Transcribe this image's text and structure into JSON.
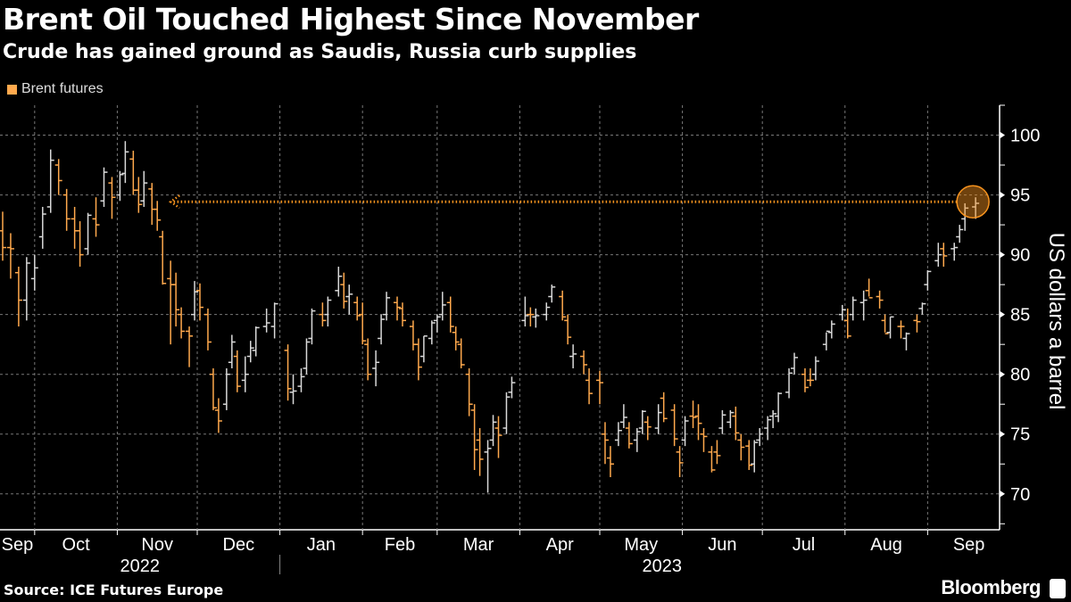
{
  "header": {
    "title": "Brent Oil Touched Highest Since November",
    "subtitle": "Crude has gained ground as Saudis, Russia curb supplies"
  },
  "footer": {
    "source": "Source: ICE Futures Europe",
    "brand": "Bloomberg"
  },
  "colors": {
    "background": "#000000",
    "down": "#ffa94d",
    "up": "#d9d9d9",
    "annotation": "#f7931e",
    "grid": "#777777"
  },
  "chart_data": {
    "type": "ohlc",
    "title": "Brent Oil Touched Highest Since November",
    "subtitle": "Crude has gained ground as Saudis, Russia curb supplies",
    "legend": [
      {
        "name": "Brent futures",
        "color": "#ffa94d"
      }
    ],
    "legend_placement": "top-left",
    "ylabel": "US dollars a barrel",
    "y_axis_side": "right",
    "ylim": [
      67,
      102.5
    ],
    "yticks": [
      70,
      75,
      80,
      85,
      90,
      95,
      100
    ],
    "xlim": [
      "2022-09-18",
      "2023-09-28"
    ],
    "xticks": [
      {
        "label": "Sep",
        "date": "2022-09-01"
      },
      {
        "label": "Oct",
        "date": "2022-10-01"
      },
      {
        "label": "Nov",
        "date": "2022-11-01"
      },
      {
        "label": "Dec",
        "date": "2022-12-01"
      },
      {
        "label": "Jan",
        "date": "2023-01-01"
      },
      {
        "label": "Feb",
        "date": "2023-02-01"
      },
      {
        "label": "Mar",
        "date": "2023-03-01"
      },
      {
        "label": "Apr",
        "date": "2023-04-01"
      },
      {
        "label": "May",
        "date": "2023-05-01"
      },
      {
        "label": "Jun",
        "date": "2023-06-01"
      },
      {
        "label": "Jul",
        "date": "2023-07-01"
      },
      {
        "label": "Aug",
        "date": "2023-08-01"
      },
      {
        "label": "Sep",
        "date": "2023-09-01"
      }
    ],
    "years": [
      {
        "label": "2022"
      },
      {
        "label": "2023"
      }
    ],
    "grid": true,
    "annotation": {
      "type": "dotted-arrow",
      "value": 94.43,
      "from_date": "2023-09-18",
      "to_date": "2022-11-21",
      "highlight": "circle"
    },
    "columns": [
      "date",
      "open",
      "high",
      "low",
      "close"
    ],
    "bars": [
      [
        "2022-09-19",
        92.0,
        93.6,
        89.5,
        90.6
      ],
      [
        "2022-09-22",
        90.6,
        91.8,
        88.0,
        90.5
      ],
      [
        "2022-09-25",
        88.5,
        89.0,
        84.0,
        86.2
      ],
      [
        "2022-09-28",
        86.2,
        89.8,
        84.5,
        89.3
      ],
      [
        "2022-10-01",
        88.0,
        90.0,
        87.0,
        88.9
      ],
      [
        "2022-10-04",
        91.5,
        94.0,
        90.5,
        93.4
      ],
      [
        "2022-10-07",
        94.0,
        98.8,
        93.5,
        97.9
      ],
      [
        "2022-10-10",
        97.5,
        98.0,
        95.0,
        96.2
      ],
      [
        "2022-10-13",
        95.0,
        95.5,
        92.0,
        93.0
      ],
      [
        "2022-10-16",
        93.0,
        94.0,
        90.5,
        92.0
      ],
      [
        "2022-10-18",
        92.0,
        92.8,
        89.0,
        90.0
      ],
      [
        "2022-10-21",
        90.5,
        93.5,
        90.0,
        93.3
      ],
      [
        "2022-10-24",
        93.0,
        94.8,
        91.5,
        92.5
      ],
      [
        "2022-10-27",
        94.5,
        97.3,
        94.0,
        96.9
      ],
      [
        "2022-10-30",
        96.0,
        96.5,
        93.0,
        94.8
      ],
      [
        "2022-11-02",
        95.0,
        97.0,
        94.5,
        96.7
      ],
      [
        "2022-11-04",
        96.8,
        99.5,
        96.0,
        98.6
      ],
      [
        "2022-11-07",
        98.0,
        98.7,
        95.0,
        95.4
      ],
      [
        "2022-11-09",
        95.4,
        96.5,
        93.5,
        94.2
      ],
      [
        "2022-11-11",
        94.5,
        97.0,
        94.0,
        96.0
      ],
      [
        "2022-11-14",
        95.5,
        96.0,
        92.5,
        93.8
      ],
      [
        "2022-11-16",
        93.8,
        94.5,
        92.0,
        92.9
      ],
      [
        "2022-11-18",
        91.5,
        92.0,
        87.5,
        87.6
      ],
      [
        "2022-11-21",
        88.0,
        89.5,
        82.5,
        87.5
      ],
      [
        "2022-11-23",
        87.5,
        88.5,
        84.0,
        85.4
      ],
      [
        "2022-11-25",
        85.0,
        85.6,
        83.0,
        83.6
      ],
      [
        "2022-11-28",
        83.6,
        84.0,
        80.6,
        83.2
      ],
      [
        "2022-11-30",
        85.0,
        87.8,
        84.5,
        86.9
      ],
      [
        "2022-12-02",
        87.0,
        87.6,
        84.5,
        85.6
      ],
      [
        "2022-12-05",
        85.0,
        85.5,
        82.0,
        82.7
      ],
      [
        "2022-12-07",
        80.0,
        80.5,
        77.0,
        77.2
      ],
      [
        "2022-12-09",
        77.0,
        78.0,
        75.1,
        76.1
      ],
      [
        "2022-12-12",
        77.5,
        80.5,
        77.0,
        80.0
      ],
      [
        "2022-12-14",
        81.0,
        83.3,
        80.5,
        82.7
      ],
      [
        "2022-12-16",
        81.5,
        82.0,
        78.5,
        79.0
      ],
      [
        "2022-12-19",
        79.5,
        81.5,
        78.5,
        80.0
      ],
      [
        "2022-12-21",
        81.5,
        82.8,
        81.0,
        82.2
      ],
      [
        "2022-12-23",
        82.0,
        84.0,
        81.5,
        83.9
      ],
      [
        "2022-12-27",
        84.0,
        85.5,
        83.5,
        84.3
      ],
      [
        "2022-12-30",
        84.0,
        86.0,
        83.0,
        85.9
      ],
      [
        "2023-01-04",
        82.0,
        82.5,
        77.8,
        78.8
      ],
      [
        "2023-01-06",
        78.5,
        80.0,
        77.5,
        78.6
      ],
      [
        "2023-01-09",
        79.0,
        80.5,
        78.5,
        79.8
      ],
      [
        "2023-01-11",
        80.5,
        83.0,
        80.0,
        82.7
      ],
      [
        "2023-01-13",
        83.0,
        85.5,
        82.5,
        85.3
      ],
      [
        "2023-01-17",
        85.0,
        86.0,
        84.0,
        84.5
      ],
      [
        "2023-01-19",
        85.0,
        86.5,
        84.0,
        86.2
      ],
      [
        "2023-01-23",
        87.0,
        89.0,
        86.5,
        88.2
      ],
      [
        "2023-01-25",
        87.5,
        88.5,
        85.5,
        86.1
      ],
      [
        "2023-01-27",
        86.5,
        87.5,
        85.0,
        86.7
      ],
      [
        "2023-01-30",
        86.0,
        86.5,
        84.5,
        84.9
      ],
      [
        "2023-02-01",
        85.0,
        86.0,
        82.5,
        82.8
      ],
      [
        "2023-02-03",
        82.5,
        83.0,
        79.5,
        80.0
      ],
      [
        "2023-02-06",
        80.5,
        82.0,
        79.0,
        81.0
      ],
      [
        "2023-02-08",
        83.0,
        85.0,
        82.5,
        84.6
      ],
      [
        "2023-02-10",
        85.0,
        86.9,
        84.5,
        86.4
      ],
      [
        "2023-02-14",
        86.0,
        86.5,
        84.5,
        85.6
      ],
      [
        "2023-02-16",
        85.5,
        86.0,
        84.0,
        84.5
      ],
      [
        "2023-02-20",
        84.0,
        84.5,
        82.0,
        82.5
      ],
      [
        "2023-02-22",
        82.5,
        83.0,
        79.5,
        80.6
      ],
      [
        "2023-02-24",
        81.5,
        83.2,
        81.0,
        83.2
      ],
      [
        "2023-02-27",
        83.0,
        84.5,
        82.5,
        84.3
      ],
      [
        "2023-03-01",
        84.5,
        85.0,
        83.5,
        84.8
      ],
      [
        "2023-03-03",
        85.0,
        86.9,
        84.5,
        85.8
      ],
      [
        "2023-03-06",
        86.0,
        86.5,
        83.5,
        84.0
      ],
      [
        "2023-03-08",
        83.5,
        84.0,
        82.0,
        82.7
      ],
      [
        "2023-03-10",
        82.5,
        83.0,
        80.5,
        80.8
      ],
      [
        "2023-03-13",
        80.0,
        80.5,
        76.5,
        77.5
      ],
      [
        "2023-03-15",
        77.0,
        77.5,
        72.0,
        73.7
      ],
      [
        "2023-03-17",
        74.5,
        75.5,
        71.5,
        72.9
      ],
      [
        "2023-03-20",
        73.5,
        74.5,
        70.1,
        73.8
      ],
      [
        "2023-03-22",
        74.5,
        76.6,
        74.0,
        76.0
      ],
      [
        "2023-03-24",
        75.5,
        76.5,
        73.0,
        74.9
      ],
      [
        "2023-03-27",
        75.5,
        78.5,
        75.0,
        78.1
      ],
      [
        "2023-03-29",
        78.5,
        79.8,
        78.0,
        79.3
      ],
      [
        "2023-04-03",
        84.5,
        86.5,
        84.0,
        84.9
      ],
      [
        "2023-04-05",
        85.0,
        85.6,
        84.0,
        85.0
      ],
      [
        "2023-04-07",
        84.8,
        85.5,
        83.9,
        84.9
      ],
      [
        "2023-04-11",
        85.0,
        86.0,
        84.5,
        85.6
      ],
      [
        "2023-04-13",
        86.5,
        87.5,
        86.0,
        87.3
      ],
      [
        "2023-04-17",
        86.5,
        87.0,
        84.5,
        84.8
      ],
      [
        "2023-04-19",
        84.5,
        85.0,
        82.5,
        83.1
      ],
      [
        "2023-04-21",
        81.5,
        82.5,
        80.5,
        81.7
      ],
      [
        "2023-04-25",
        81.5,
        82.0,
        80.0,
        80.8
      ],
      [
        "2023-04-27",
        79.5,
        80.5,
        77.5,
        78.4
      ],
      [
        "2023-05-01",
        79.5,
        80.3,
        77.5,
        79.3
      ],
      [
        "2023-05-03",
        75.0,
        76.0,
        72.5,
        74.5
      ],
      [
        "2023-05-05",
        73.0,
        74.0,
        71.4,
        72.5
      ],
      [
        "2023-05-08",
        74.5,
        76.0,
        74.0,
        75.3
      ],
      [
        "2023-05-10",
        76.0,
        77.5,
        75.5,
        76.4
      ],
      [
        "2023-05-12",
        75.5,
        76.0,
        73.8,
        74.2
      ],
      [
        "2023-05-15",
        74.5,
        75.5,
        73.5,
        75.2
      ],
      [
        "2023-05-17",
        75.5,
        77.0,
        75.0,
        76.9
      ],
      [
        "2023-05-19",
        76.0,
        76.5,
        74.5,
        75.6
      ],
      [
        "2023-05-23",
        75.5,
        77.5,
        75.0,
        76.8
      ],
      [
        "2023-05-25",
        78.0,
        78.5,
        76.0,
        76.3
      ],
      [
        "2023-05-29",
        77.0,
        77.5,
        74.0,
        74.6
      ],
      [
        "2023-05-31",
        73.5,
        74.0,
        71.4,
        72.6
      ],
      [
        "2023-06-02",
        74.5,
        76.5,
        74.0,
        76.1
      ],
      [
        "2023-06-05",
        76.5,
        77.8,
        75.5,
        76.4
      ],
      [
        "2023-06-07",
        76.5,
        77.5,
        74.5,
        75.9
      ],
      [
        "2023-06-09",
        75.0,
        75.5,
        73.5,
        74.8
      ],
      [
        "2023-06-12",
        73.5,
        74.0,
        71.8,
        72.0
      ],
      [
        "2023-06-14",
        73.5,
        74.5,
        72.5,
        73.2
      ],
      [
        "2023-06-16",
        75.5,
        77.0,
        75.0,
        76.6
      ],
      [
        "2023-06-19",
        76.0,
        77.0,
        75.5,
        76.8
      ],
      [
        "2023-06-21",
        76.5,
        77.3,
        74.5,
        75.1
      ],
      [
        "2023-06-23",
        74.5,
        75.0,
        72.8,
        73.9
      ],
      [
        "2023-06-26",
        74.0,
        74.5,
        72.0,
        72.4
      ],
      [
        "2023-06-28",
        72.5,
        74.5,
        71.8,
        74.3
      ],
      [
        "2023-06-30",
        74.5,
        75.5,
        74.0,
        75.0
      ],
      [
        "2023-07-03",
        75.5,
        76.5,
        74.5,
        76.2
      ],
      [
        "2023-07-05",
        76.5,
        77.0,
        75.5,
        76.7
      ],
      [
        "2023-07-07",
        76.5,
        78.5,
        76.0,
        78.4
      ],
      [
        "2023-07-11",
        78.5,
        80.5,
        78.0,
        80.1
      ],
      [
        "2023-07-13",
        80.5,
        81.8,
        80.0,
        81.4
      ],
      [
        "2023-07-17",
        80.0,
        80.5,
        78.5,
        78.9
      ],
      [
        "2023-07-19",
        79.5,
        80.5,
        79.0,
        79.5
      ],
      [
        "2023-07-21",
        80.0,
        81.5,
        79.5,
        81.1
      ],
      [
        "2023-07-25",
        82.5,
        83.5,
        82.0,
        83.6
      ],
      [
        "2023-07-27",
        83.5,
        84.5,
        83.0,
        84.2
      ],
      [
        "2023-07-31",
        85.0,
        85.8,
        84.5,
        85.4
      ],
      [
        "2023-08-02",
        84.5,
        85.5,
        83.0,
        83.2
      ],
      [
        "2023-08-04",
        85.0,
        86.5,
        84.5,
        86.2
      ],
      [
        "2023-08-08",
        86.0,
        87.0,
        84.5,
        86.2
      ],
      [
        "2023-08-10",
        87.0,
        88.0,
        86.5,
        86.4
      ],
      [
        "2023-08-14",
        86.5,
        87.0,
        85.5,
        86.2
      ],
      [
        "2023-08-16",
        84.5,
        85.0,
        83.5,
        83.4
      ],
      [
        "2023-08-18",
        83.5,
        84.8,
        83.0,
        84.8
      ],
      [
        "2023-08-22",
        84.0,
        84.5,
        83.0,
        84.0
      ],
      [
        "2023-08-24",
        83.0,
        83.5,
        82.0,
        83.4
      ],
      [
        "2023-08-28",
        84.5,
        85.0,
        83.5,
        84.4
      ],
      [
        "2023-08-30",
        85.5,
        86.0,
        85.0,
        85.9
      ],
      [
        "2023-09-01",
        87.5,
        88.7,
        87.0,
        88.6
      ],
      [
        "2023-09-05",
        89.5,
        91.0,
        89.0,
        90.0
      ],
      [
        "2023-09-07",
        90.5,
        91.0,
        89.0,
        89.9
      ],
      [
        "2023-09-11",
        90.5,
        91.0,
        89.5,
        90.6
      ],
      [
        "2023-09-13",
        91.5,
        92.5,
        91.0,
        92.1
      ],
      [
        "2023-09-15",
        93.0,
        94.3,
        92.0,
        93.9
      ],
      [
        "2023-09-19",
        94.0,
        94.8,
        93.0,
        94.3
      ]
    ]
  }
}
